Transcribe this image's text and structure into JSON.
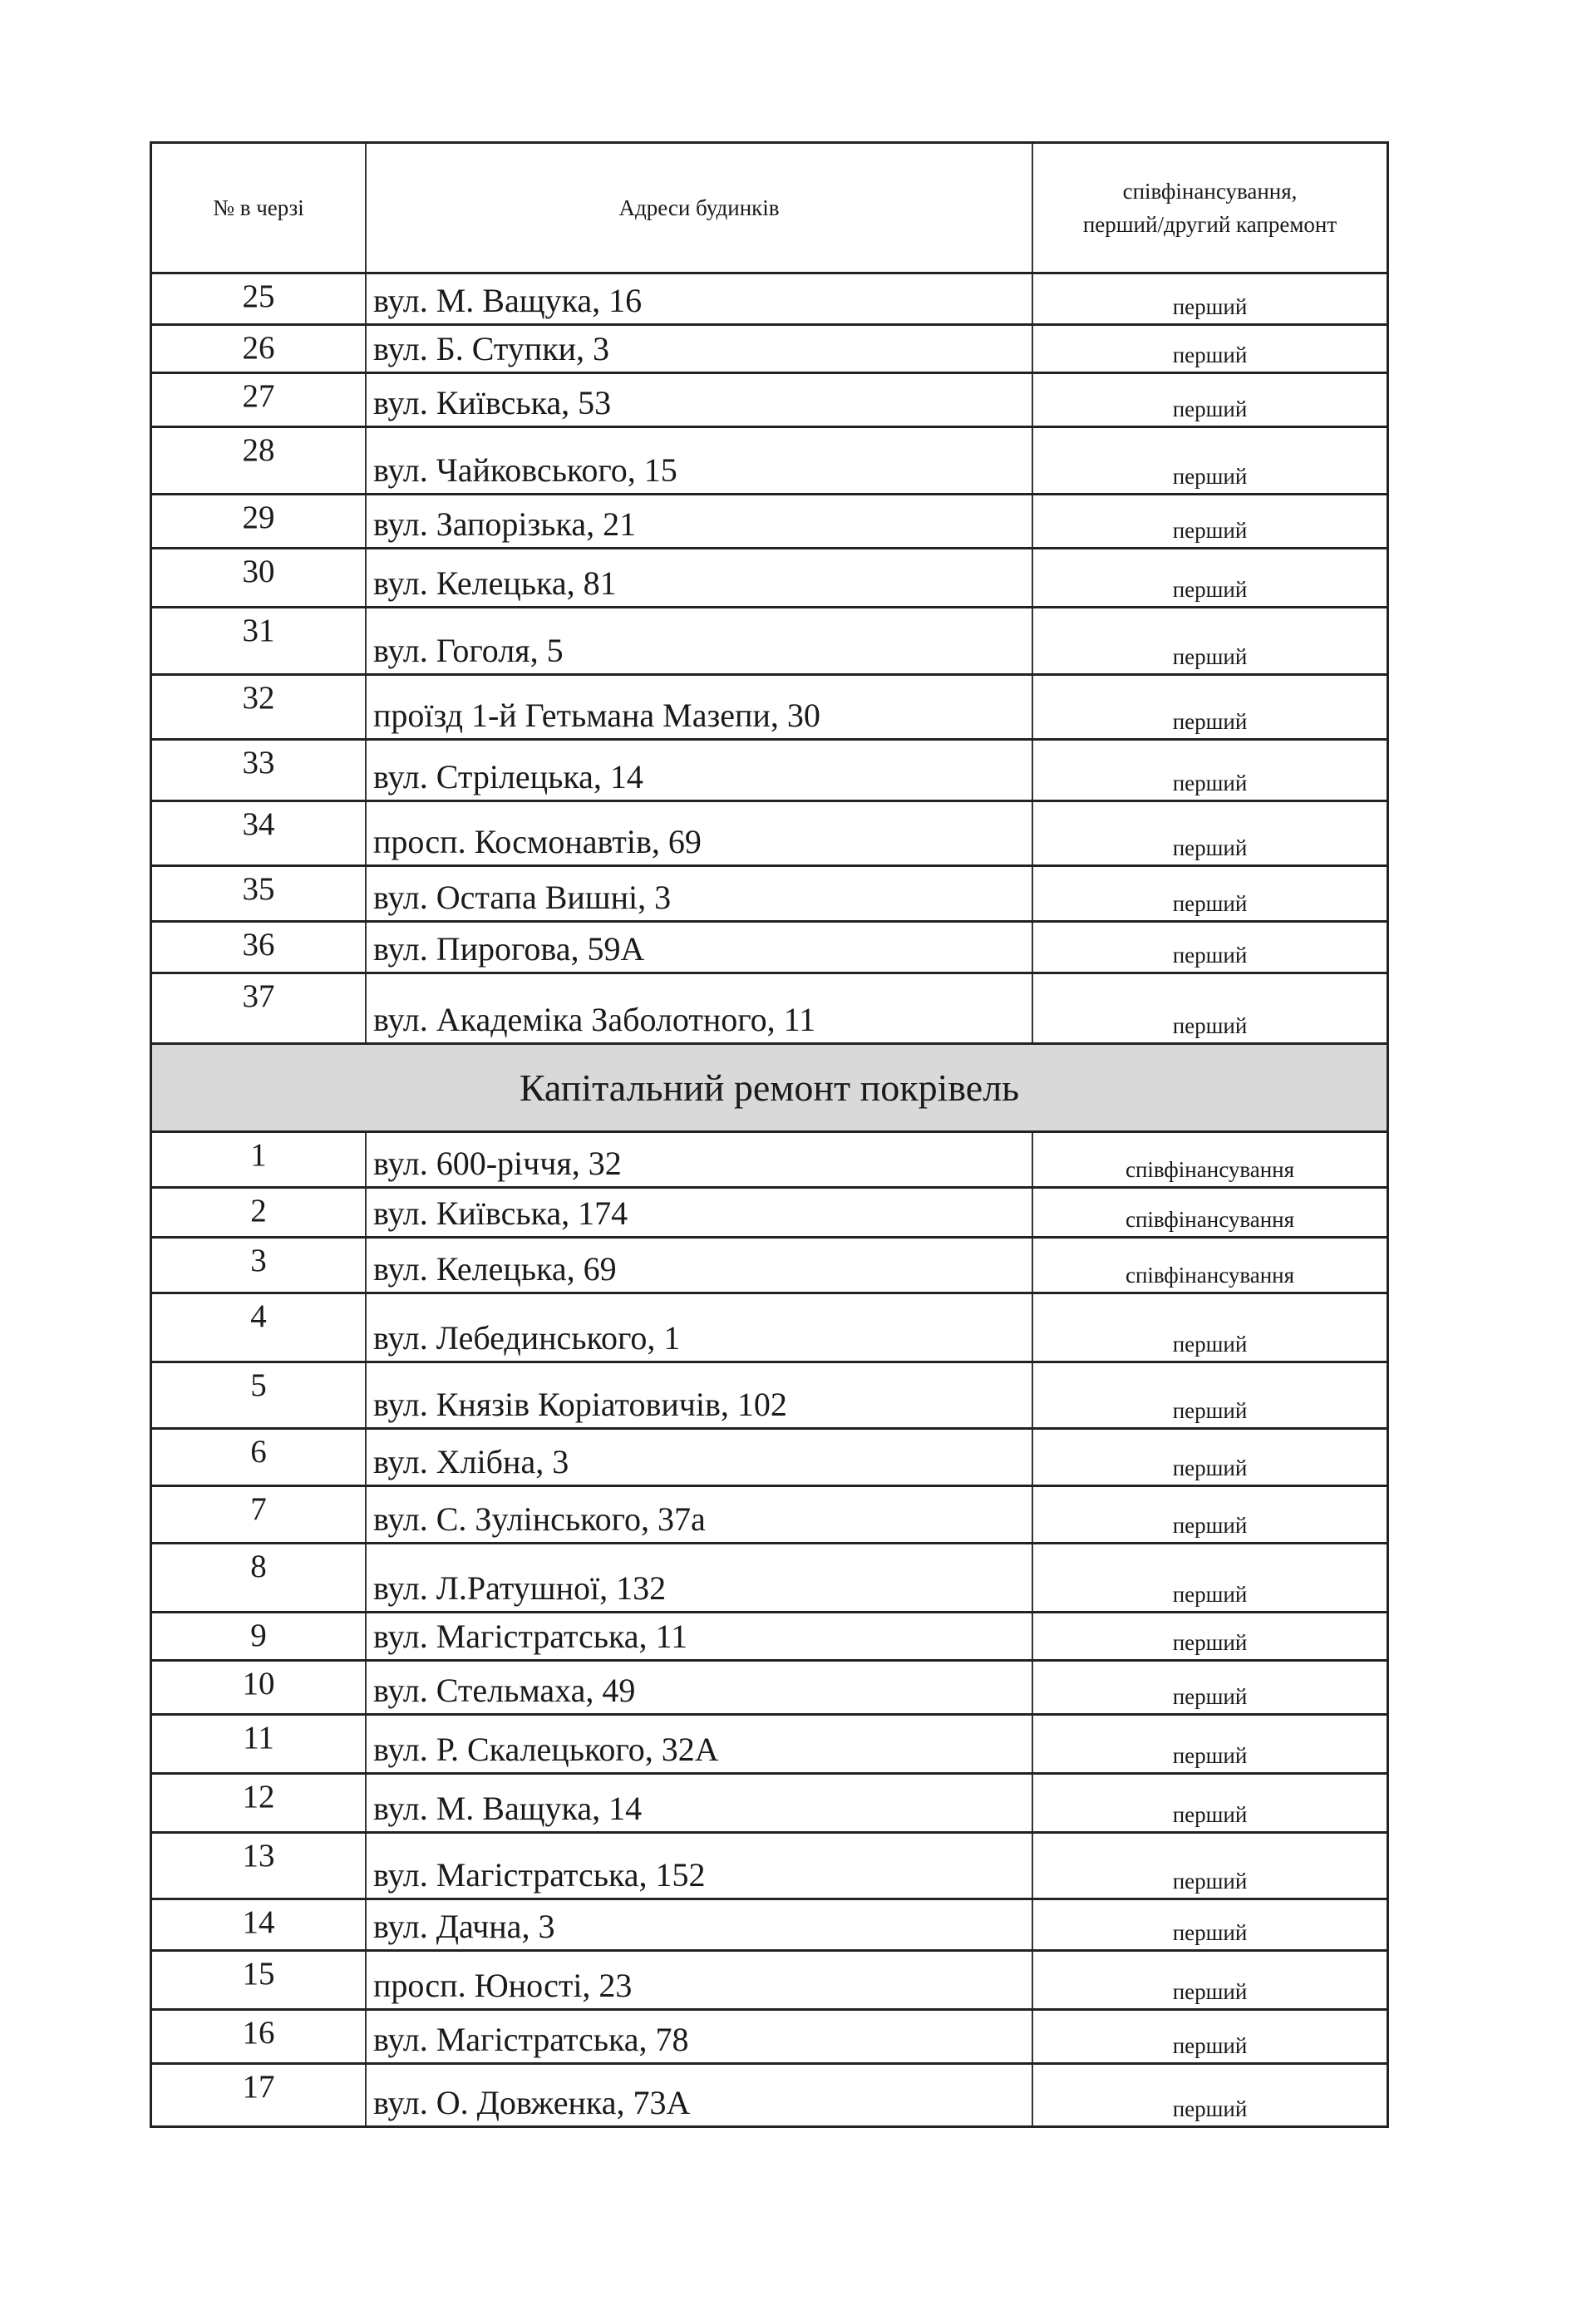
{
  "header": {
    "col_number": "№ в черзі",
    "col_address": "Адреси будинків",
    "col_type": "співфінансування,\nперший/другий капремонт"
  },
  "rows_part1": [
    {
      "n": "25",
      "address": "вул. М. Ващука, 16",
      "type": "перший"
    },
    {
      "n": "26",
      "address": "вул. Б. Ступки, 3",
      "type": "перший"
    },
    {
      "n": "27",
      "address": "вул. Київська, 53",
      "type": "перший"
    },
    {
      "n": "28",
      "address": "вул. Чайковського, 15",
      "type": "перший"
    },
    {
      "n": "29",
      "address": "вул. Запорізька, 21",
      "type": "перший"
    },
    {
      "n": "30",
      "address": "вул. Келецька, 81",
      "type": "перший"
    },
    {
      "n": "31",
      "address": "вул. Гоголя, 5",
      "type": "перший"
    },
    {
      "n": "32",
      "address": "проїзд 1-й Гетьмана Мазепи, 30",
      "type": "перший"
    },
    {
      "n": "33",
      "address": "вул. Стрілецька, 14",
      "type": "перший"
    },
    {
      "n": "34",
      "address": "просп. Космонавтів, 69",
      "type": "перший"
    },
    {
      "n": "35",
      "address": "вул. Остапа Вишні, 3",
      "type": "перший"
    },
    {
      "n": "36",
      "address": "вул. Пирогова, 59А",
      "type": "перший"
    },
    {
      "n": "37",
      "address": "вул. Академіка Заболотного, 11",
      "type": "перший"
    }
  ],
  "section_title": "Капітальний ремонт покрівель",
  "rows_part2": [
    {
      "n": "1",
      "address": "вул. 600-річчя, 32",
      "type": "співфінансування"
    },
    {
      "n": "2",
      "address": "вул. Київська, 174",
      "type": "співфінансування"
    },
    {
      "n": "3",
      "address": "вул. Келецька, 69",
      "type": "співфінансування"
    },
    {
      "n": "4",
      "address": "вул. Лебединського, 1",
      "type": "перший"
    },
    {
      "n": "5",
      "address": "вул. Князів Коріатовичів, 102",
      "type": "перший"
    },
    {
      "n": "6",
      "address": "вул. Хлібна, 3",
      "type": "перший"
    },
    {
      "n": "7",
      "address": "вул. С. Зулінського, 37а",
      "type": "перший"
    },
    {
      "n": "8",
      "address": "вул. Л.Ратушної, 132",
      "type": "перший"
    },
    {
      "n": "9",
      "address": "вул. Магістратська, 11",
      "type": "перший"
    },
    {
      "n": "10",
      "address": "вул. Стельмаха, 49",
      "type": "перший"
    },
    {
      "n": "11",
      "address": "вул. Р. Скалецького, 32А",
      "type": "перший"
    },
    {
      "n": "12",
      "address": "вул. М. Ващука, 14",
      "type": "перший"
    },
    {
      "n": "13",
      "address": "вул. Магістратська, 152",
      "type": "перший"
    },
    {
      "n": "14",
      "address": "вул. Дачна, 3",
      "type": "перший"
    },
    {
      "n": "15",
      "address": "просп. Юності, 23",
      "type": "перший"
    },
    {
      "n": "16",
      "address": "вул. Магістратська, 78",
      "type": "перший"
    },
    {
      "n": "17",
      "address": "вул. О. Довженка, 73А",
      "type": "перший"
    }
  ]
}
